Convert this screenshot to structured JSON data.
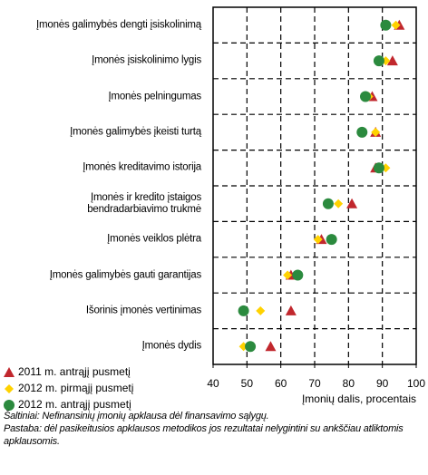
{
  "chart_data": {
    "type": "dot",
    "categories": [
      "Įmonės galimybės dengti įsiskolinimą",
      "Įmonės įsiskolinimo lygis",
      "Įmonės pelningumas",
      "Įmonės galimybės įkeisti turtą",
      "Įmonės kreditavimo istorija",
      "Įmonės ir kredito įstaigos\nbendradarbiavimo trukmė",
      "Įmonės veiklos plėtra",
      "Įmonės galimybės gauti garantijas",
      "Išorinis įmonės vertinimas",
      "Įmonės dydis"
    ],
    "series": [
      {
        "name": "2011 m. antrąjį pusmetį",
        "color": "#c1272d",
        "marker": "triangle",
        "values": [
          95,
          93,
          87,
          88,
          88,
          81,
          72,
          63,
          63,
          57
        ]
      },
      {
        "name": "2012 m. pirmąjį pusmetį",
        "color": "#ffd200",
        "marker": "diamond",
        "values": [
          94,
          91,
          86,
          88,
          91,
          77,
          71,
          62,
          54,
          49
        ]
      },
      {
        "name": "2012 m. antrąjį pusmetį",
        "color": "#2b8a3e",
        "marker": "circle",
        "values": [
          91,
          89,
          85,
          84,
          89,
          74,
          75,
          65,
          49,
          51
        ]
      }
    ],
    "xlabel": "Įmonių dalis, procentais",
    "xlim": [
      40,
      100
    ],
    "xticks": [
      40,
      50,
      60,
      70,
      80,
      90,
      100
    ],
    "grid": true,
    "notes": [
      "Šaltiniai: Nefinansinių įmonių apklausa dėl finansavimo sąlygų.",
      "Pastaba: dėl pasikeitusios apklausos metodikos jos rezultatai nelygintini su ankščiau atliktomis apklausomis."
    ]
  }
}
